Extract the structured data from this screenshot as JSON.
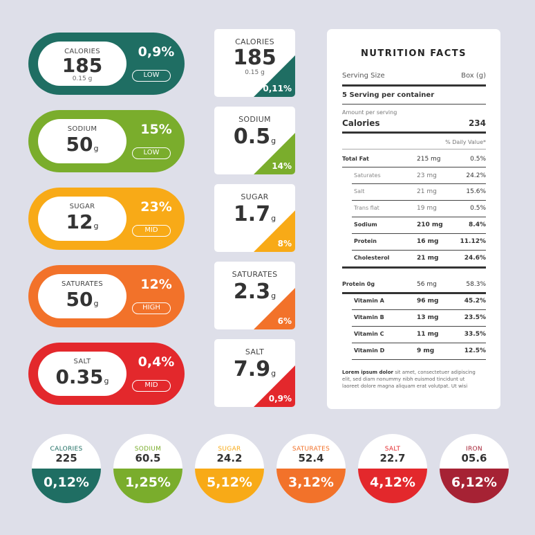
{
  "colors": {
    "calories": "#1f6e63",
    "sodium": "#7aad2c",
    "sugar": "#f8aa17",
    "saturates": "#f2722a",
    "salt": "#e3282c",
    "iron": "#a62234"
  },
  "pills": [
    {
      "label": "CALORIES",
      "value": "185",
      "unit": "",
      "sub": "0.15 g",
      "percent": "0,9%",
      "level": "LOW"
    },
    {
      "label": "SODIUM",
      "value": "50",
      "unit": "g",
      "sub": "",
      "percent": "15%",
      "level": "LOW"
    },
    {
      "label": "SUGAR",
      "value": "12",
      "unit": "g",
      "sub": "",
      "percent": "23%",
      "level": "MID"
    },
    {
      "label": "SATURATES",
      "value": "50",
      "unit": "g",
      "sub": "",
      "percent": "12%",
      "level": "HIGH"
    },
    {
      "label": "SALT",
      "value": "0.35",
      "unit": "g",
      "sub": "",
      "percent": "0,4%",
      "level": "MID"
    }
  ],
  "squares": [
    {
      "label": "CALORIES",
      "value": "185",
      "unit": "",
      "sub": "0.15 g",
      "percent": "0,11%"
    },
    {
      "label": "SODIUM",
      "value": "0.5",
      "unit": "g",
      "sub": "",
      "percent": "14%"
    },
    {
      "label": "SUGAR",
      "value": "1.7",
      "unit": "g",
      "sub": "",
      "percent": "8%"
    },
    {
      "label": "SATURATES",
      "value": "2.3",
      "unit": "g",
      "sub": "",
      "percent": "6%"
    },
    {
      "label": "SALT",
      "value": "7.9",
      "unit": "g",
      "sub": "",
      "percent": "0,9%"
    }
  ],
  "facts": {
    "title": "NUTRITION FACTS",
    "serving_size_label": "Serving Size",
    "serving_size_value": "Box (g)",
    "servings": "5 Serving per container",
    "amount_per_serving": "Amount per serving",
    "calories_label": "Calories",
    "calories_value": "234",
    "daily_value_label": "% Daily Value*",
    "rows": [
      {
        "name": "Total Fat",
        "amount": "215 mg",
        "percent": "0.5%"
      },
      {
        "name": "Saturates",
        "amount": "23 mg",
        "percent": "24.2%"
      },
      {
        "name": "Salt",
        "amount": "21 mg",
        "percent": "15.6%"
      },
      {
        "name": "Trans flat",
        "amount": "19 mg",
        "percent": "0.5%"
      },
      {
        "name": "Sodium",
        "amount": "210 mg",
        "percent": "8.4%"
      },
      {
        "name": "Protein",
        "amount": "16 mg",
        "percent": "11.12%"
      },
      {
        "name": "Cholesterol",
        "amount": "21 mg",
        "percent": "24.6%"
      },
      {
        "name": "Protein 0g",
        "amount": "56 mg",
        "percent": "58.3%"
      },
      {
        "name": "Vitamin A",
        "amount": "96 mg",
        "percent": "45.2%"
      },
      {
        "name": "Vitamin B",
        "amount": "13 mg",
        "percent": "23.5%"
      },
      {
        "name": "Vitamin C",
        "amount": "11 mg",
        "percent": "33.5%"
      },
      {
        "name": "Vitamin D",
        "amount": "9 mg",
        "percent": "12.5%"
      }
    ],
    "footnote_bold": "Lorem ipsum dolor",
    "footnote_l1": " sit amet, consectetuer adipiscing",
    "footnote_l2": "elit, sed diam nonummy nibh euismod tincidunt ut",
    "footnote_l3": "laoreet dolore magna aliquam erat volutpat. Ut wisi"
  },
  "circles": [
    {
      "label": "CALORIES",
      "value": "225",
      "percent": "0,12%"
    },
    {
      "label": "SODIUM",
      "value": "60.5",
      "percent": "1,25%"
    },
    {
      "label": "SUGAR",
      "value": "24.2",
      "percent": "5,12%"
    },
    {
      "label": "SATURATES",
      "value": "52.4",
      "percent": "3,12%"
    },
    {
      "label": "SALT",
      "value": "22.7",
      "percent": "4,12%"
    },
    {
      "label": "IRON",
      "value": "05.6",
      "percent": "6,12%"
    }
  ]
}
